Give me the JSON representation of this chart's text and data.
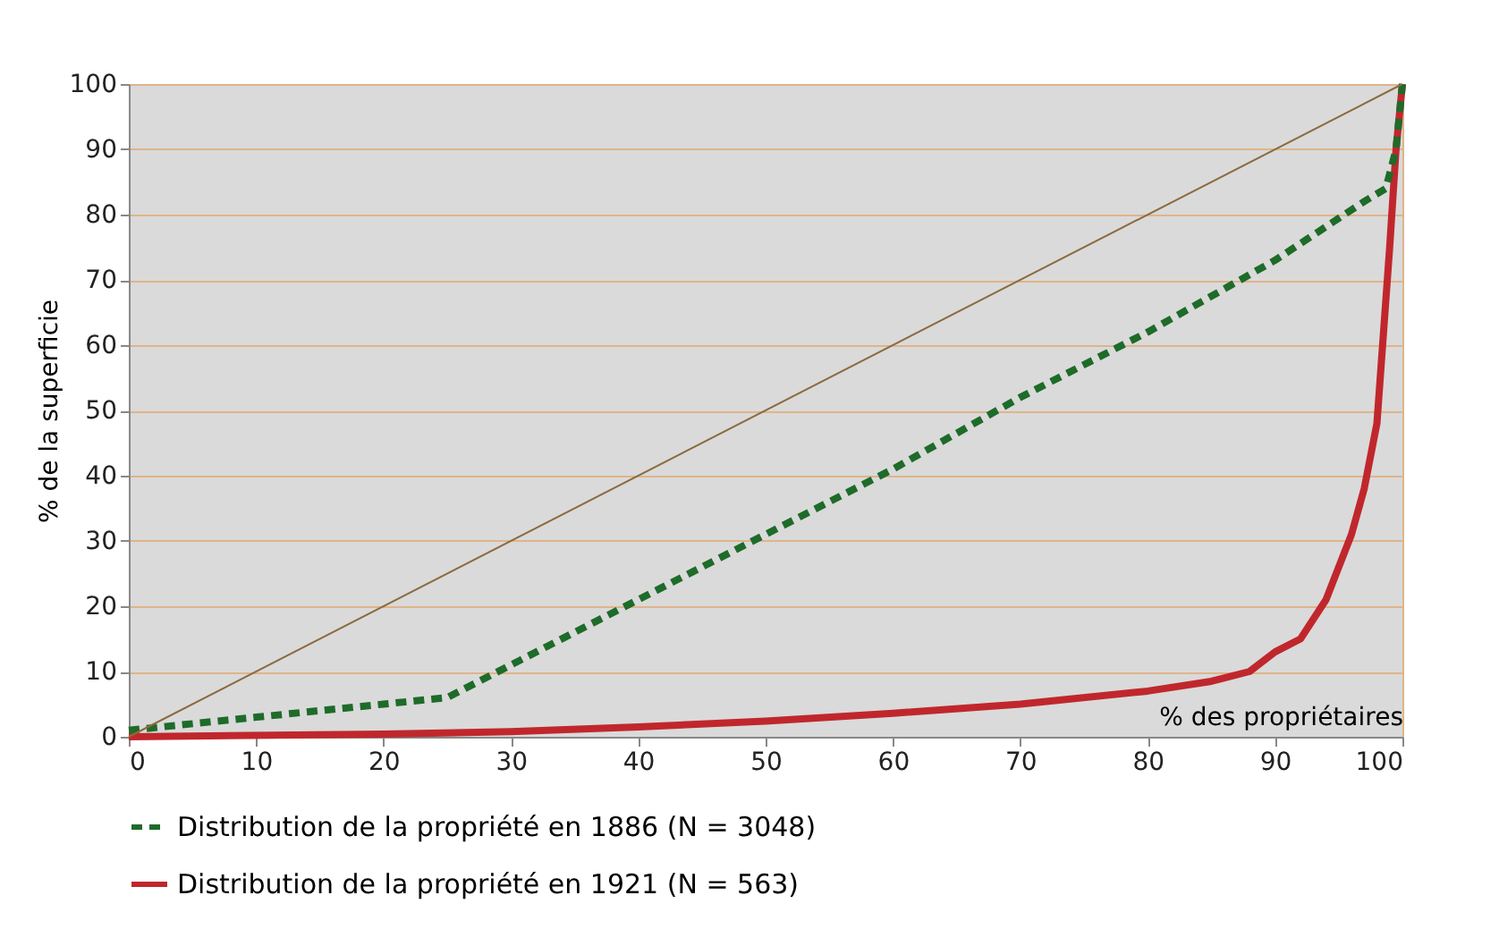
{
  "chart_data": {
    "type": "line",
    "xlabel": "% des propriétaires",
    "ylabel": "% de la superficie",
    "xlim": [
      0,
      100
    ],
    "ylim": [
      0,
      100
    ],
    "xticks": [
      0,
      10,
      20,
      30,
      40,
      50,
      60,
      70,
      80,
      90,
      100
    ],
    "yticks": [
      0,
      10,
      20,
      30,
      40,
      50,
      60,
      70,
      80,
      90,
      100
    ],
    "grid": "y",
    "legend": "bottom",
    "series": [
      {
        "color": "#8b6a3e",
        "line_style": "solid",
        "x": [
          0,
          100
        ],
        "values": [
          0,
          100
        ]
      },
      {
        "name": "Distribution de la propriété en 1886 (N = 3048)",
        "color": "#1e6b2a",
        "line_style": "dashed",
        "x": [
          0,
          10,
          20,
          25,
          30,
          40,
          50,
          60,
          70,
          80,
          90,
          97,
          98.7,
          99.5,
          100
        ],
        "values": [
          1,
          3,
          5,
          6,
          11,
          21,
          31,
          41,
          52,
          62,
          73,
          82,
          84,
          90,
          100
        ]
      },
      {
        "name": "Distribution de la propriété en 1921 (N = 563)",
        "color": "#c0272d",
        "line_style": "solid",
        "x": [
          0,
          20,
          30,
          40,
          50,
          60,
          70,
          80,
          85,
          88,
          90,
          92,
          94,
          96,
          97,
          98,
          99,
          99.5,
          100
        ],
        "values": [
          0,
          0.4,
          0.8,
          1.5,
          2.4,
          3.6,
          5,
          7,
          8.5,
          10,
          13,
          15,
          21,
          31,
          38,
          48,
          75,
          90,
          100
        ]
      }
    ]
  }
}
